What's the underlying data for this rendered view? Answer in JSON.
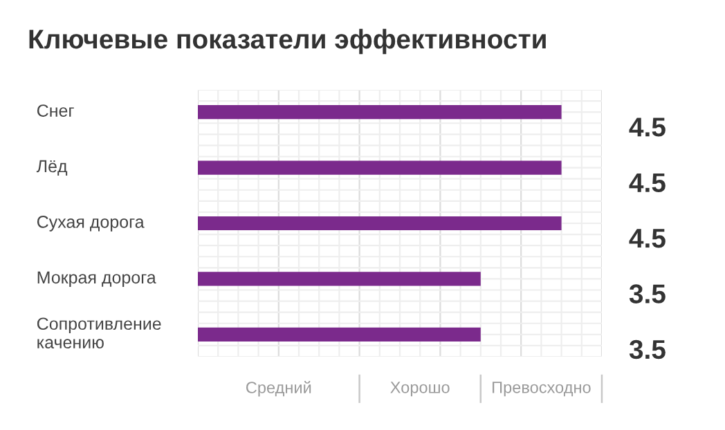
{
  "chart_data": {
    "type": "bar",
    "orientation": "horizontal",
    "title": "Ключевые показатели эффективности",
    "categories": [
      "Снег",
      "Лёд",
      "Сухая дорога",
      "Мокрая дорога",
      "Сопротивление\nкачению"
    ],
    "values": [
      4.5,
      4.5,
      4.5,
      3.5,
      3.5
    ],
    "color": "#7b2a8c",
    "xlim": [
      0,
      5
    ],
    "xticks": [
      {
        "value": 2,
        "label": null
      },
      {
        "value": 3.5,
        "label": null
      },
      {
        "value": 5,
        "label": null
      }
    ],
    "annotations": [
      "Средний",
      "Хорошо",
      "Превосходно"
    ],
    "grid": true,
    "data_labels": true
  }
}
